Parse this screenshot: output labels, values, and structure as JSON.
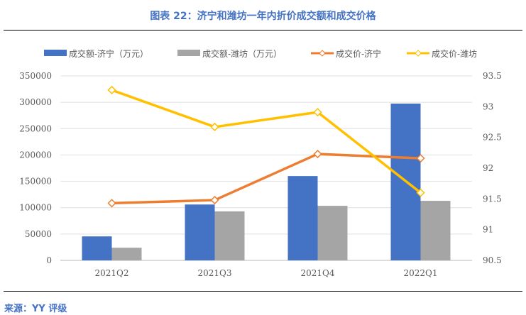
{
  "title": "图表 22：济宁和潍坊一年内折价成交额和成交价格",
  "source": "来源：YY 评级",
  "chart_data": {
    "type": "bar+line",
    "categories": [
      "2021Q2",
      "2021Q3",
      "2021Q4",
      "2022Q1"
    ],
    "y_left": {
      "lim": [
        0,
        350000
      ],
      "ticks": [
        0,
        50000,
        100000,
        150000,
        200000,
        250000,
        300000,
        350000
      ]
    },
    "y_right": {
      "lim": [
        90.5,
        93.5
      ],
      "ticks": [
        "90.5",
        "91",
        "91.5",
        "92",
        "92.5",
        "93",
        "93.5"
      ]
    },
    "grid": true,
    "legend_position": "top",
    "series": [
      {
        "name": "成交额-济宁（万元）",
        "type": "bar",
        "axis": "left",
        "color": "#4472C4",
        "values": [
          45500,
          106000,
          160000,
          297500
        ]
      },
      {
        "name": "成交额-潍坊（万元）",
        "type": "bar",
        "axis": "left",
        "color": "#A5A5A5",
        "values": [
          24000,
          93000,
          103500,
          113000
        ]
      },
      {
        "name": "成交价-济宁",
        "type": "line",
        "axis": "right",
        "color": "#ED7D31",
        "values": [
          91.43,
          91.48,
          92.23,
          92.16
        ]
      },
      {
        "name": "成交价-潍坊",
        "type": "line",
        "axis": "right",
        "color": "#FFC000",
        "values": [
          93.27,
          92.67,
          92.91,
          91.6
        ]
      }
    ]
  }
}
